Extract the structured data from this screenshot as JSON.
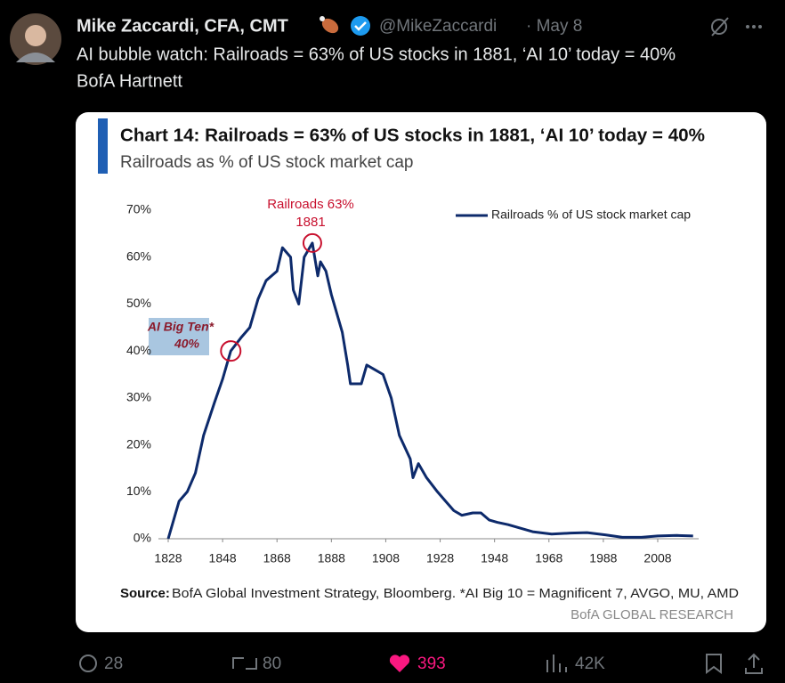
{
  "tweet": {
    "author": "Mike Zaccardi, CFA, CMT",
    "handle": "@MikeZaccardi",
    "date": "· May 8",
    "text": [
      "AI bubble watch: Railroads = 63% of US stocks in 1881, ‘AI 10’ today = 40%",
      "BofA Hartnett"
    ],
    "replies": "28",
    "reposts": "80",
    "likes": "393",
    "views": "42K"
  },
  "chart_data": {
    "type": "line",
    "title": "Chart 14: Railroads = 63% of US stocks in 1881, ‘AI 10’ today = 40%",
    "subtitle": "Railroads as % of US stock market cap",
    "x": [
      1828,
      1832,
      1835,
      1838,
      1841,
      1845,
      1848,
      1851,
      1855,
      1858,
      1861,
      1864,
      1868,
      1870,
      1873,
      1874,
      1876,
      1878,
      1881,
      1883,
      1884,
      1886,
      1888,
      1890,
      1892,
      1894,
      1895,
      1897,
      1899,
      1901,
      1904,
      1907,
      1910,
      1913,
      1917,
      1918,
      1920,
      1923,
      1927,
      1930,
      1933,
      1936,
      1940,
      1943,
      1946,
      1949,
      1953,
      1956,
      1962,
      1969,
      1976,
      1982,
      1989,
      1995,
      2002,
      2008,
      2015,
      2021
    ],
    "series": [
      {
        "name": "Railroads % of US stock market cap",
        "color": "#0d2a6b",
        "values": [
          0,
          8,
          10,
          14,
          22,
          29,
          34,
          40,
          43,
          45,
          51,
          55,
          57,
          62,
          60,
          53,
          50,
          60,
          63,
          56,
          59,
          57,
          52,
          48,
          44,
          37,
          33,
          33,
          33,
          37,
          36,
          35,
          30,
          22,
          17,
          13,
          16,
          13,
          10,
          8,
          6,
          5,
          5.5,
          5.5,
          4,
          3.5,
          3,
          2.5,
          1.5,
          1,
          1.2,
          1.3,
          0.8,
          0.3,
          0.3,
          0.6,
          0.7,
          0.6
        ]
      }
    ],
    "xlim": [
      1828,
      2021
    ],
    "ylim": [
      0,
      70
    ],
    "xticks": [
      1828,
      1848,
      1868,
      1888,
      1908,
      1928,
      1948,
      1968,
      1988,
      2008
    ],
    "yticks": [
      {
        "value": 0,
        "label": "0%"
      },
      {
        "value": 10,
        "label": "10%"
      },
      {
        "value": 20,
        "label": "20%"
      },
      {
        "value": 30,
        "label": "30%"
      },
      {
        "value": 40,
        "label": "40%"
      },
      {
        "value": 50,
        "label": "50%"
      },
      {
        "value": 60,
        "label": "60%"
      },
      {
        "value": 70,
        "label": "70%"
      }
    ],
    "annotations": {
      "peak": [
        "Railroads 63%",
        "1881"
      ],
      "ai": [
        "AI Big Ten*",
        "40%"
      ]
    },
    "source_label": "Source:",
    "source": "BofA Global Investment Strategy, Bloomberg. *AI Big 10 = Magnificent 7, AVGO, MU, AMD",
    "footer": "BofA GLOBAL RESEARCH"
  }
}
